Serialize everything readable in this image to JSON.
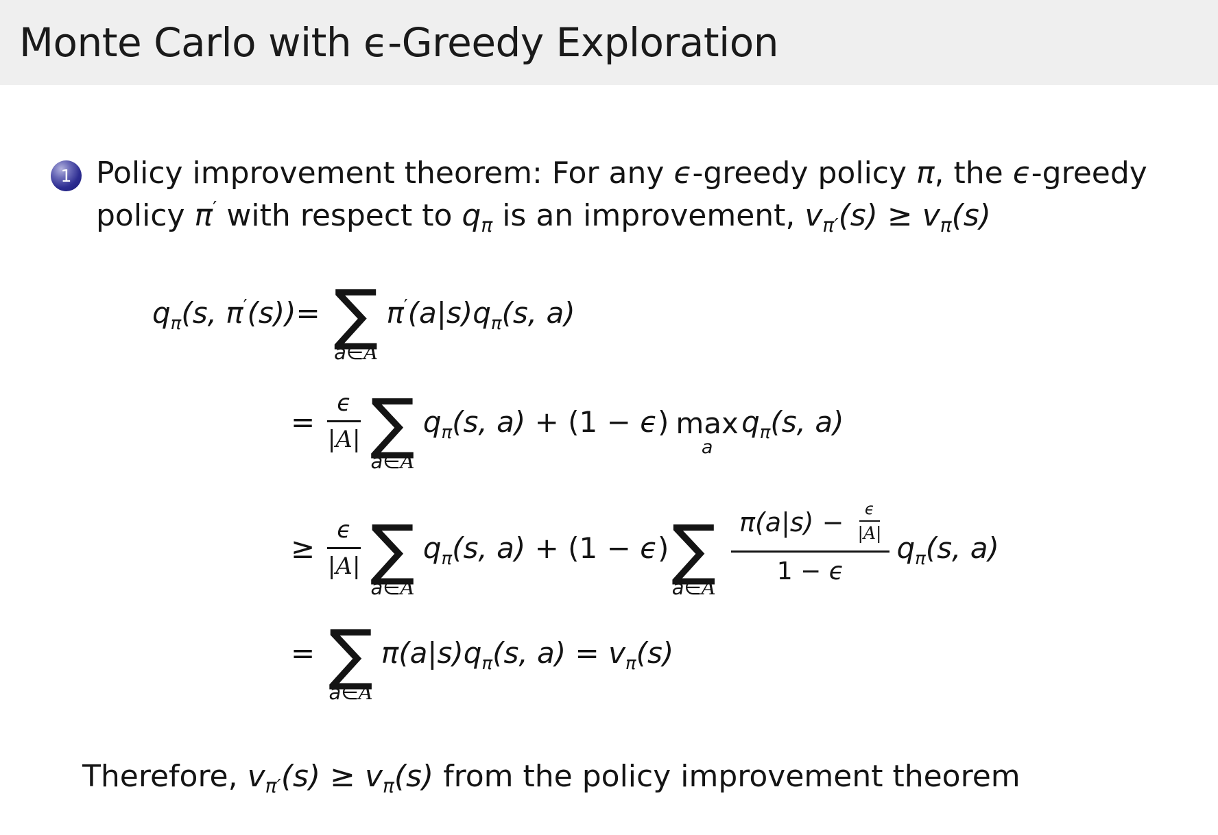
{
  "title": "Monte Carlo with ϵ-Greedy Exploration",
  "bullet": {
    "number": "1"
  },
  "line1": {
    "a": "Policy improvement theorem: For any ",
    "eps": "ϵ",
    "b": "-greedy policy ",
    "pi": "π",
    "c": ", the ",
    "eps2": "ϵ",
    "d": "-greedy"
  },
  "line2": {
    "a": "policy ",
    "b": " with respect to ",
    "c": " is an improvement, "
  },
  "footer": {
    "a": "Therefore, ",
    "b": " from the policy improvement theorem"
  },
  "tokens": {
    "pi": "π",
    "pi_prime": "π′",
    "prime": "′",
    "q": "q",
    "v": "v",
    "eps": "ϵ",
    "sum": "∑",
    "under_a": "a",
    "elem": "∈",
    "setA": "A",
    "pipe": "|",
    "lhs_mid": "(s, ",
    "lhs_end": "(s))",
    "g_as": "(a|s)",
    "g_sa": "(s, a)",
    "g_s": "(s)",
    "open_1m": "(1 − ",
    "close": ")",
    "one_minus": "1 − ",
    "minus": " − ",
    "plus": " + ",
    "max": "max",
    "eq": "=",
    "eq_sp": " = ",
    "geq": "≥",
    "geq_sp": " ≥ "
  },
  "colors": {
    "background": "#ffffff",
    "title_bar_bg": "#efefef",
    "text": "#141414",
    "ball_fill": "#2d2d91",
    "ball_number": "#ffffff"
  }
}
